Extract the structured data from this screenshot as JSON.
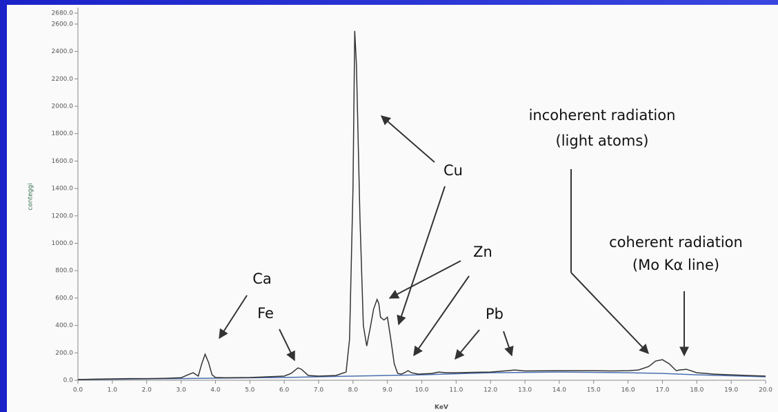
{
  "chart_data": {
    "type": "line",
    "x_label": "KeV",
    "y_label": "conteggi",
    "xlim": [
      0,
      20
    ],
    "ylim": [
      0,
      2680
    ],
    "xticks": [
      {
        "value": 0,
        "label": "0.0"
      },
      {
        "value": 1,
        "label": "1.0"
      },
      {
        "value": 2,
        "label": "2.0"
      },
      {
        "value": 3,
        "label": "3.0"
      },
      {
        "value": 4,
        "label": "4.0"
      },
      {
        "value": 5,
        "label": "5.0"
      },
      {
        "value": 6,
        "label": "6.0"
      },
      {
        "value": 7,
        "label": "7.0"
      },
      {
        "value": 8,
        "label": "8.0"
      },
      {
        "value": 9,
        "label": "9.0"
      },
      {
        "value": 10,
        "label": "10.0"
      },
      {
        "value": 11,
        "label": "11.0"
      },
      {
        "value": 12,
        "label": "12.0"
      },
      {
        "value": 13,
        "label": "13.0"
      },
      {
        "value": 14,
        "label": "14.0"
      },
      {
        "value": 15,
        "label": "15.0"
      },
      {
        "value": 16,
        "label": "16.0"
      },
      {
        "value": 17,
        "label": "17.0"
      },
      {
        "value": 18,
        "label": "18.0"
      },
      {
        "value": 19,
        "label": "19.0"
      },
      {
        "value": 20,
        "label": "20.0"
      }
    ],
    "yticks": [
      {
        "value": 0,
        "label": "0.0"
      },
      {
        "value": 200,
        "label": "200.0"
      },
      {
        "value": 400,
        "label": "400.0"
      },
      {
        "value": 600,
        "label": "600.0"
      },
      {
        "value": 800,
        "label": "800.0"
      },
      {
        "value": 1000,
        "label": "1000.0"
      },
      {
        "value": 1200,
        "label": "1200.0"
      },
      {
        "value": 1400,
        "label": "1400.0"
      },
      {
        "value": 1600,
        "label": "1600.0"
      },
      {
        "value": 1800,
        "label": "1800.0"
      },
      {
        "value": 2000,
        "label": "2000.0"
      },
      {
        "value": 2200,
        "label": "2200.0"
      },
      {
        "value": 2400,
        "label": "2400.0"
      },
      {
        "value": 2600,
        "label": "2600.0"
      },
      {
        "value": 2680,
        "label": "2680.0"
      }
    ],
    "series": [
      {
        "color": "#333333",
        "x": [
          0,
          0.5,
          1,
          1.5,
          2,
          2.5,
          3,
          3.2,
          3.35,
          3.5,
          3.6,
          3.7,
          3.8,
          3.9,
          4.0,
          4.3,
          5,
          5.5,
          6,
          6.2,
          6.4,
          6.5,
          6.7,
          7,
          7.5,
          7.8,
          7.9,
          8.0,
          8.05,
          8.1,
          8.2,
          8.3,
          8.4,
          8.5,
          8.6,
          8.7,
          8.75,
          8.8,
          8.9,
          9.0,
          9.1,
          9.2,
          9.3,
          9.4,
          9.5,
          9.6,
          9.7,
          9.9,
          10.3,
          10.5,
          10.7,
          11,
          11.5,
          12,
          12.5,
          12.7,
          13,
          14,
          15,
          15.5,
          16,
          16.3,
          16.6,
          16.8,
          17.0,
          17.2,
          17.4,
          17.5,
          17.7,
          18,
          18.5,
          19,
          19.5,
          20
        ],
        "values": [
          5,
          8,
          10,
          12,
          12,
          14,
          18,
          40,
          55,
          30,
          120,
          190,
          130,
          40,
          20,
          18,
          20,
          25,
          30,
          50,
          90,
          80,
          35,
          30,
          35,
          60,
          300,
          1400,
          2550,
          2300,
          1200,
          400,
          250,
          380,
          520,
          590,
          560,
          460,
          440,
          460,
          300,
          120,
          50,
          45,
          55,
          70,
          55,
          45,
          50,
          60,
          55,
          55,
          58,
          60,
          70,
          75,
          68,
          70,
          70,
          68,
          70,
          75,
          100,
          140,
          150,
          120,
          70,
          75,
          80,
          55,
          45,
          40,
          35,
          30
        ]
      },
      {
        "color": "#4a6fb0",
        "x": [
          0,
          2,
          4,
          6,
          8,
          10,
          12,
          14,
          16,
          17,
          18,
          20
        ],
        "values": [
          5,
          10,
          15,
          20,
          30,
          40,
          55,
          60,
          55,
          50,
          40,
          25
        ]
      }
    ],
    "annotations": [
      "Ca",
      "Fe",
      "Cu",
      "Zn",
      "Pb",
      "incoherent radiation",
      "(light atoms)",
      "coherent radiation",
      "(Mo Kα line)"
    ]
  }
}
